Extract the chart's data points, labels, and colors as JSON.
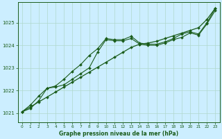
{
  "title": "Graphe pression niveau de la mer (hPa)",
  "bg_color": "#cceeff",
  "grid_color": "#b0d8cc",
  "line_color": "#1a5c1a",
  "xlim": [
    -0.5,
    23.5
  ],
  "ylim": [
    1020.6,
    1025.9
  ],
  "yticks": [
    1021,
    1022,
    1023,
    1024,
    1025
  ],
  "xticks": [
    0,
    1,
    2,
    3,
    4,
    5,
    6,
    7,
    8,
    9,
    10,
    11,
    12,
    13,
    14,
    15,
    16,
    17,
    18,
    19,
    20,
    21,
    22,
    23
  ],
  "hours": [
    0,
    1,
    2,
    3,
    4,
    5,
    6,
    7,
    8,
    9,
    10,
    11,
    12,
    13,
    14,
    15,
    16,
    17,
    18,
    19,
    20,
    21,
    22,
    23
  ],
  "line1": [
    1021.05,
    1021.35,
    1021.75,
    1022.1,
    1022.2,
    1022.5,
    1022.85,
    1023.15,
    1023.55,
    1023.85,
    1024.3,
    1024.25,
    1024.25,
    1024.4,
    1024.1,
    1024.05,
    1024.05,
    1024.15,
    1024.3,
    1024.5,
    1024.6,
    1024.5,
    1025.0,
    1025.65
  ],
  "line2": [
    1021.05,
    1021.2,
    1021.55,
    1022.1,
    1022.15,
    1022.25,
    1022.5,
    1022.75,
    1023.0,
    1023.7,
    1024.25,
    1024.2,
    1024.2,
    1024.3,
    1024.05,
    1024.0,
    1024.0,
    1024.1,
    1024.25,
    1024.35,
    1024.55,
    1024.45,
    1024.95,
    1025.55
  ],
  "line3": [
    1021.05,
    1021.27,
    1021.49,
    1021.71,
    1021.93,
    1022.15,
    1022.37,
    1022.59,
    1022.81,
    1023.03,
    1023.25,
    1023.47,
    1023.69,
    1023.91,
    1024.05,
    1024.1,
    1024.18,
    1024.3,
    1024.42,
    1024.54,
    1024.66,
    1024.78,
    1025.15,
    1025.65
  ]
}
